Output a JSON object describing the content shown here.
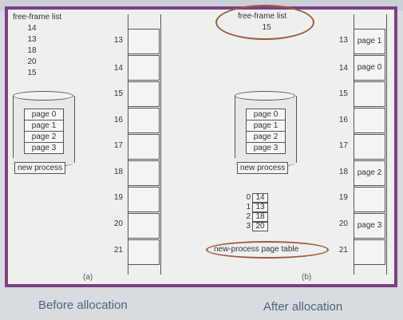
{
  "panel_a": {
    "free_frame_title": "free-frame list",
    "free_frames": [
      "14",
      "13",
      "18",
      "20",
      "15"
    ],
    "frame_numbers": [
      "13",
      "14",
      "15",
      "16",
      "17",
      "18",
      "19",
      "20",
      "21"
    ],
    "pages": [
      "page 0",
      "page 1",
      "page 2",
      "page 3"
    ],
    "new_process_label": "new process",
    "caption": "(a)"
  },
  "panel_b": {
    "free_frame_title": "free-frame list",
    "free_frame_value": "15",
    "frame_numbers": [
      "13",
      "14",
      "15",
      "16",
      "17",
      "18",
      "19",
      "20",
      "21"
    ],
    "frame_contents": [
      "page 1",
      "page 0",
      "",
      "",
      "",
      "page 2",
      "",
      "page 3",
      ""
    ],
    "pages": [
      "page 0",
      "page 1",
      "page 2",
      "page 3"
    ],
    "new_process_label": "new process",
    "page_table": {
      "indices": [
        "0",
        "1",
        "2",
        "3"
      ],
      "frames": [
        "14",
        "13",
        "18",
        "20"
      ],
      "label": "new-process page table"
    },
    "caption": "(b)",
    "highlight_color": "#a0583f"
  },
  "bottom": {
    "before_label": "Before allocation",
    "after_label": "After allocation"
  }
}
